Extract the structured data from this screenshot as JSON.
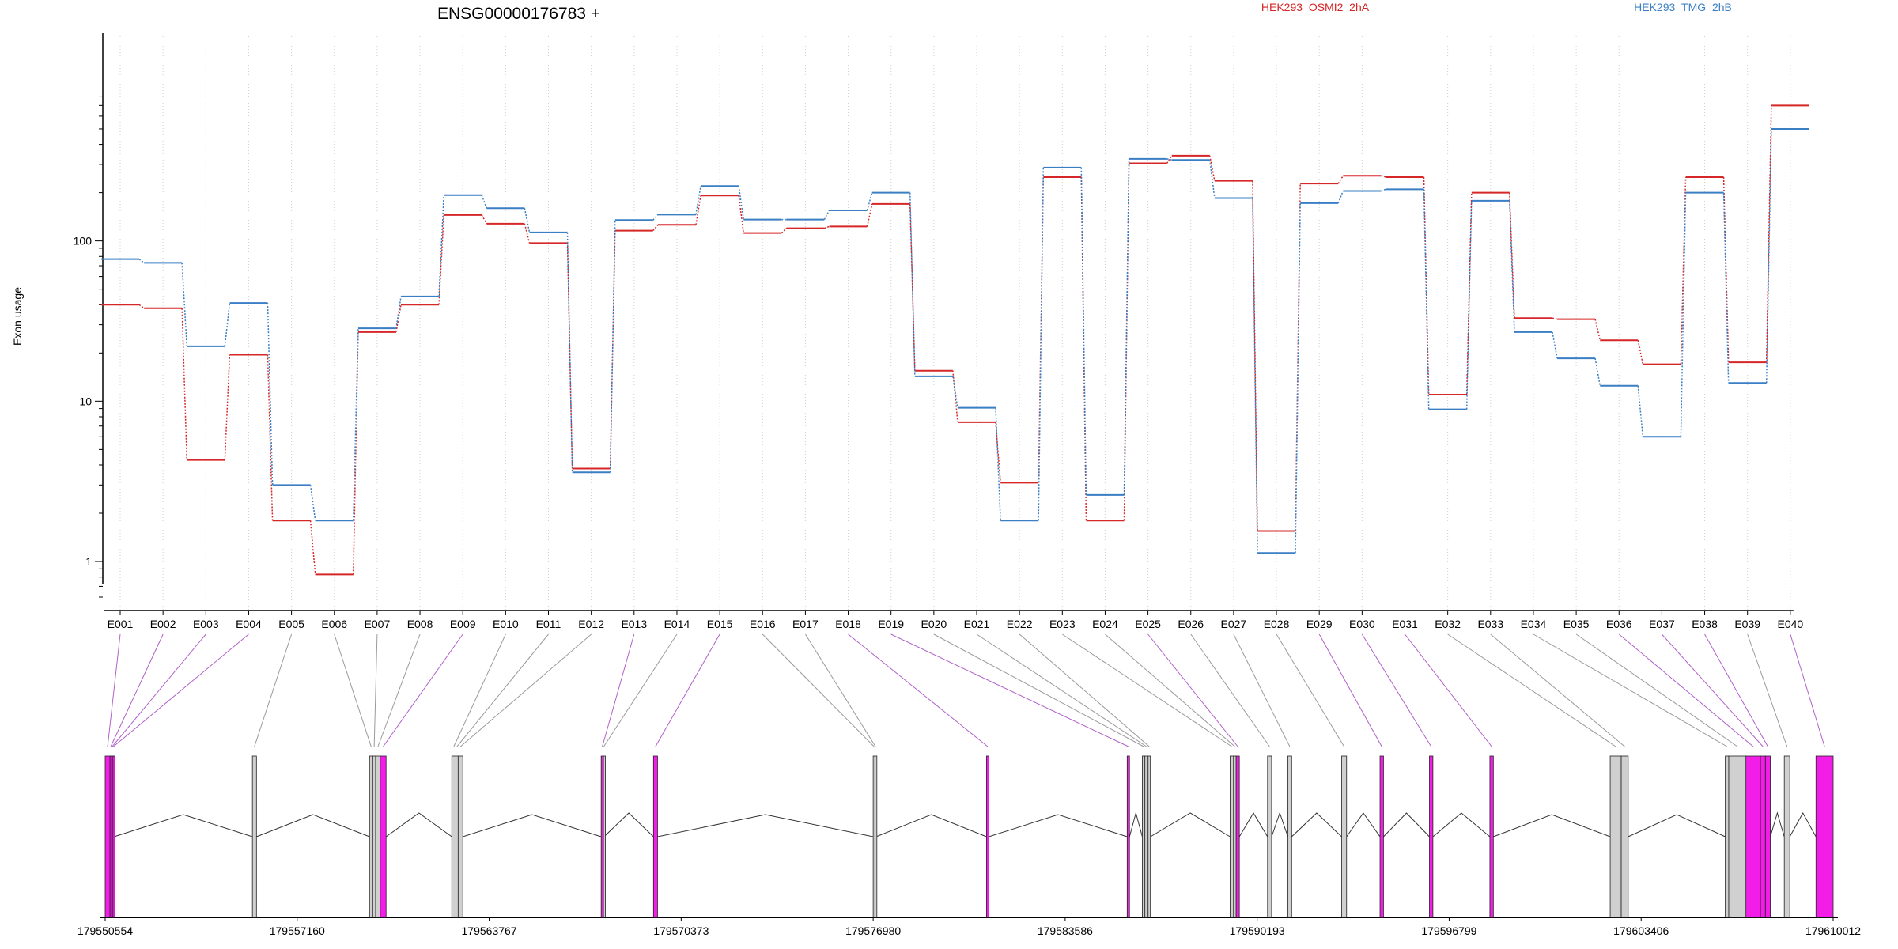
{
  "chart_data": {
    "type": "line",
    "title": "ENSG00000176783 +",
    "ylabel": "Exon usage",
    "xlabel": "",
    "y_scale": "log",
    "ylim": [
      0.6,
      800
    ],
    "y_ticks": [
      1,
      10,
      100
    ],
    "y_tick_labels": [
      "1",
      "10",
      "100"
    ],
    "grid": "vertical dotted",
    "legend_placement": "top",
    "categories": [
      "E001",
      "E002",
      "E003",
      "E004",
      "E005",
      "E006",
      "E007",
      "E008",
      "E009",
      "E010",
      "E011",
      "E012",
      "E013",
      "E014",
      "E015",
      "E016",
      "E017",
      "E018",
      "E019",
      "E020",
      "E021",
      "E022",
      "E023",
      "E024",
      "E025",
      "E026",
      "E027",
      "E028",
      "E029",
      "E030",
      "E031",
      "E032",
      "E033",
      "E034",
      "E035",
      "E036",
      "E037",
      "E038",
      "E039",
      "E040"
    ],
    "series": [
      {
        "name": "HEK293_OSMI2_2hA",
        "color": "#d62728",
        "values": [
          40,
          38,
          4.3,
          19.5,
          1.8,
          0.83,
          27,
          40,
          145,
          128,
          97,
          3.8,
          116,
          126,
          192,
          112,
          120,
          123,
          170,
          15.5,
          7.4,
          3.1,
          250,
          1.8,
          305,
          340,
          237,
          1.55,
          228,
          255,
          250,
          11,
          200,
          33,
          32.5,
          24,
          17,
          250,
          17.5,
          700
        ]
      },
      {
        "name": "HEK293_TMG_2hB",
        "color": "#3a7fc4",
        "values": [
          77,
          73,
          22,
          41,
          3,
          1.8,
          28.5,
          45,
          193,
          160,
          113,
          3.6,
          135,
          146,
          220,
          136,
          136,
          155,
          200,
          14.3,
          9.1,
          1.8,
          287,
          2.6,
          325,
          320,
          185,
          1.13,
          172,
          205,
          210,
          8.9,
          178,
          27,
          18.5,
          12.5,
          6,
          200,
          13,
          500
        ]
      }
    ],
    "genomic_axis": {
      "tick_labels": [
        "179550554",
        "179557160",
        "179563767",
        "179570373",
        "179576980",
        "179583586",
        "179590193",
        "179596799",
        "179603406",
        "179610012"
      ],
      "exons": [
        {
          "id": "E001",
          "start": 179550554,
          "end": 179550720,
          "color": "#f21ee8"
        },
        {
          "id": "E002",
          "start": 179550720,
          "end": 179550775,
          "color": "#f21ee8"
        },
        {
          "id": "E003",
          "start": 179550775,
          "end": 179550820,
          "color": "#f21ee8"
        },
        {
          "id": "E004",
          "start": 179550820,
          "end": 179550860,
          "color": "#f21ee8"
        },
        {
          "id": "E005",
          "start": 179555620,
          "end": 179555760,
          "color": "#d0d0d0"
        },
        {
          "id": "E006",
          "start": 179559650,
          "end": 179559760,
          "color": "#d0d0d0"
        },
        {
          "id": "E007",
          "start": 179559760,
          "end": 179559860,
          "color": "#d0d0d0"
        },
        {
          "id": "E008",
          "start": 179559860,
          "end": 179560020,
          "color": "#d0d0d0"
        },
        {
          "id": "E009",
          "start": 179560020,
          "end": 179560220,
          "color": "#f21ee8"
        },
        {
          "id": "E010",
          "start": 179562480,
          "end": 179562620,
          "color": "#d0d0d0"
        },
        {
          "id": "E011",
          "start": 179562620,
          "end": 179562700,
          "color": "#d0d0d0"
        },
        {
          "id": "E012",
          "start": 179562700,
          "end": 179562860,
          "color": "#d0d0d0"
        },
        {
          "id": "E013",
          "start": 179567620,
          "end": 179567700,
          "color": "#f21ee8"
        },
        {
          "id": "E014",
          "start": 179567700,
          "end": 179567720,
          "color": "#d0d0d0"
        },
        {
          "id": "E015",
          "start": 179569420,
          "end": 179569560,
          "color": "#f21ee8"
        },
        {
          "id": "E016",
          "start": 179576980,
          "end": 179577040,
          "color": "#d0d0d0"
        },
        {
          "id": "E017",
          "start": 179577040,
          "end": 179577080,
          "color": "#d0d0d0"
        },
        {
          "id": "E018",
          "start": 179580880,
          "end": 179580960,
          "color": "#f21ee8"
        },
        {
          "id": "E019",
          "start": 179585720,
          "end": 179585800,
          "color": "#f21ee8"
        },
        {
          "id": "E020",
          "start": 179586240,
          "end": 179586330,
          "color": "#d0d0d0"
        },
        {
          "id": "E021",
          "start": 179586330,
          "end": 179586440,
          "color": "#d0d0d0"
        },
        {
          "id": "E022",
          "start": 179586440,
          "end": 179586520,
          "color": "#d0d0d0"
        },
        {
          "id": "E023",
          "start": 179589260,
          "end": 179589380,
          "color": "#d0d0d0"
        },
        {
          "id": "E024",
          "start": 179589380,
          "end": 179589470,
          "color": "#d0d0d0"
        },
        {
          "id": "E025",
          "start": 179589470,
          "end": 179589580,
          "color": "#f21ee8"
        },
        {
          "id": "E026",
          "start": 179590550,
          "end": 179590690,
          "color": "#d0d0d0"
        },
        {
          "id": "E027",
          "start": 179591250,
          "end": 179591380,
          "color": "#d0d0d0"
        },
        {
          "id": "E028",
          "start": 179593100,
          "end": 179593270,
          "color": "#d0d0d0"
        },
        {
          "id": "E029",
          "start": 179594420,
          "end": 179594540,
          "color": "#f21ee8"
        },
        {
          "id": "E030",
          "start": 179596120,
          "end": 179596240,
          "color": "#f21ee8"
        },
        {
          "id": "E031",
          "start": 179598200,
          "end": 179598320,
          "color": "#f21ee8"
        },
        {
          "id": "E032",
          "start": 179602340,
          "end": 179602720,
          "color": "#d0d0d0"
        },
        {
          "id": "E033",
          "start": 179602720,
          "end": 179602960,
          "color": "#d0d0d0"
        },
        {
          "id": "E034",
          "start": 179606300,
          "end": 179606420,
          "color": "#d0d0d0"
        },
        {
          "id": "E035",
          "start": 179606420,
          "end": 179607020,
          "color": "#d0d0d0"
        },
        {
          "id": "E036",
          "start": 179607010,
          "end": 179607510,
          "color": "#f21ee8"
        },
        {
          "id": "E037",
          "start": 179607510,
          "end": 179607680,
          "color": "#f21ee8"
        },
        {
          "id": "E038",
          "start": 179607680,
          "end": 179607850,
          "color": "#f21ee8"
        },
        {
          "id": "E039",
          "start": 179608330,
          "end": 179608520,
          "color": "#d0d0d0"
        },
        {
          "id": "E040",
          "start": 179609420,
          "end": 179610012,
          "color": "#f21ee8"
        }
      ]
    }
  }
}
